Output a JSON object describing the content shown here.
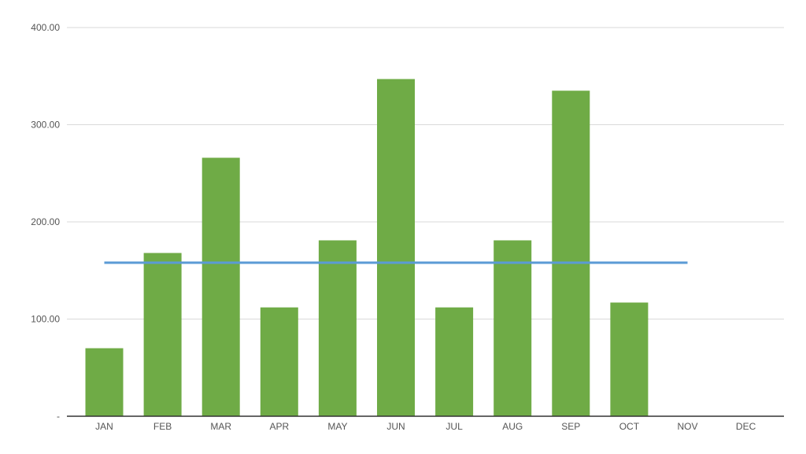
{
  "chart_data": {
    "type": "bar",
    "title": "",
    "xlabel": "",
    "ylabel": "",
    "categories": [
      "JAN",
      "FEB",
      "MAR",
      "APR",
      "MAY",
      "JUN",
      "JUL",
      "AUG",
      "SEP",
      "OCT",
      "NOV",
      "DEC"
    ],
    "series": [
      {
        "type": "bar",
        "color": "#6fab46",
        "values": [
          70,
          168,
          266,
          112,
          181,
          347,
          112,
          181,
          335,
          117,
          null,
          null
        ]
      },
      {
        "type": "line",
        "color": "#5b9bd5",
        "values": [
          158,
          158,
          158,
          158,
          158,
          158,
          158,
          158,
          158,
          158,
          158,
          null
        ]
      }
    ],
    "ylim": [
      0,
      400
    ],
    "yticks": [
      {
        "value": 0,
        "label": "-"
      },
      {
        "value": 100,
        "label": "100.00"
      },
      {
        "value": 200,
        "label": "200.00"
      },
      {
        "value": 300,
        "label": "300.00"
      },
      {
        "value": 400,
        "label": "400.00"
      }
    ],
    "grid": true,
    "legend": "none"
  }
}
